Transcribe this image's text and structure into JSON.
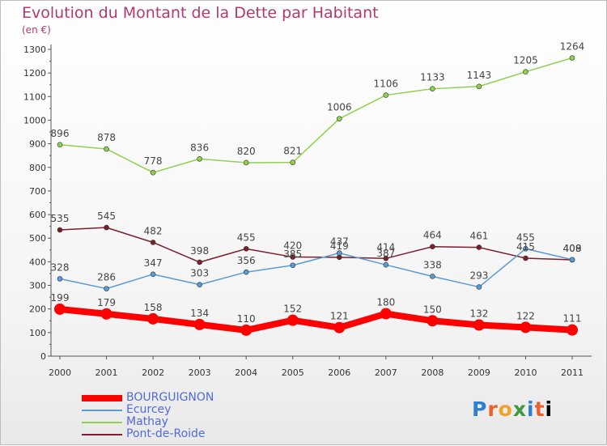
{
  "chart_data": {
    "type": "line",
    "title": "Evolution du Montant de la Dette par Habitant",
    "subtitle": "(en €)",
    "x": [
      "2000",
      "2001",
      "2002",
      "2003",
      "2004",
      "2005",
      "2006",
      "2007",
      "2008",
      "2009",
      "2010",
      "2011"
    ],
    "ylim": [
      0,
      1300
    ],
    "yticks": [
      0,
      100,
      200,
      300,
      400,
      500,
      600,
      700,
      800,
      900,
      1000,
      1100,
      1200,
      1300
    ],
    "grid": false,
    "legend_position": "bottom-left",
    "series": [
      {
        "name": "BOURGUIGNON",
        "color": "#ff0000",
        "values": [
          199,
          179,
          158,
          134,
          110,
          152,
          121,
          180,
          150,
          132,
          122,
          111
        ]
      },
      {
        "name": "Ecurcey",
        "color": "#5b9bd5",
        "values": [
          328,
          286,
          347,
          303,
          356,
          385,
          437,
          387,
          338,
          293,
          455,
          409
        ]
      },
      {
        "name": "Mathay",
        "color": "#8fd14f",
        "values": [
          896,
          878,
          778,
          836,
          820,
          821,
          1006,
          1106,
          1133,
          1143,
          1205,
          1264
        ]
      },
      {
        "name": "Pont-de-Roide",
        "color": "#7a1f2b",
        "values": [
          535,
          545,
          482,
          398,
          455,
          420,
          419,
          414,
          464,
          461,
          415,
          408
        ]
      }
    ]
  },
  "watermark": {
    "letters": [
      "P",
      "r",
      "o",
      "x",
      "i",
      "t",
      "i"
    ]
  }
}
